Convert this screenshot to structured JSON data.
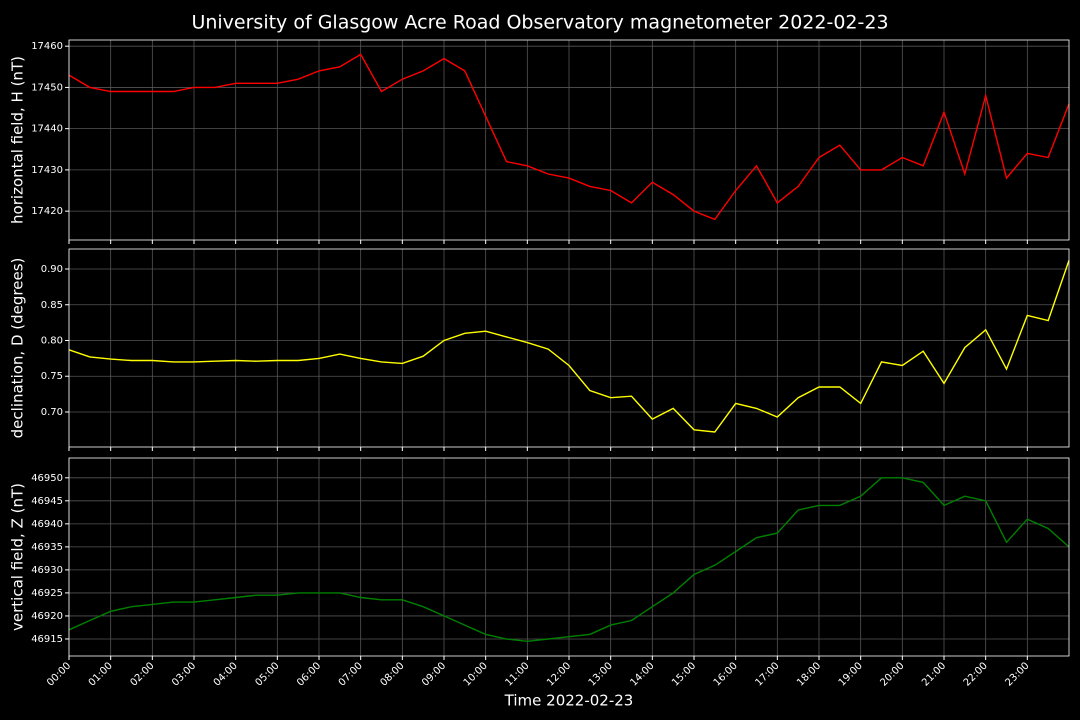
{
  "title": "University of Glasgow Acre Road Observatory magnetometer 2022-02-23",
  "x_label": "Time 2022-02-23",
  "chart_data": [
    {
      "type": "line",
      "y_label": "horizontal field, H (nT)",
      "grid": true,
      "x": [
        0,
        0.5,
        1,
        1.5,
        2,
        2.5,
        3,
        3.5,
        4,
        4.5,
        5,
        5.5,
        6,
        6.5,
        7,
        7.5,
        8,
        8.5,
        9,
        9.5,
        10,
        10.5,
        11,
        11.5,
        12,
        12.5,
        13,
        13.5,
        14,
        14.5,
        15,
        15.5,
        16,
        16.5,
        17,
        17.5,
        18,
        18.5,
        19,
        19.5,
        20,
        20.5,
        21,
        21.5,
        22,
        22.5,
        23,
        23.5,
        24
      ],
      "xlim": [
        0,
        24
      ],
      "ylim": [
        17413,
        17461.5
      ],
      "yticks": [
        17420,
        17430,
        17440,
        17450,
        17460
      ],
      "series": [
        {
          "name": "H",
          "color": "#ff0000",
          "values": [
            17453,
            17450,
            17449,
            17449,
            17449,
            17449,
            17450,
            17450,
            17451,
            17451,
            17451,
            17452,
            17454,
            17455,
            17458,
            17449,
            17452,
            17454,
            17457,
            17454,
            17443,
            17432,
            17431,
            17429,
            17428,
            17426,
            17425,
            17422,
            17427,
            17424,
            17420,
            17418,
            17425,
            17431,
            17422,
            17426,
            17433,
            17436,
            17430,
            17430,
            17433,
            17431,
            17444,
            17429,
            17448,
            17428,
            17434,
            17433,
            17446
          ]
        }
      ]
    },
    {
      "type": "line",
      "y_label": "declination, D (degrees)",
      "grid": true,
      "x": [
        0,
        0.5,
        1,
        1.5,
        2,
        2.5,
        3,
        3.5,
        4,
        4.5,
        5,
        5.5,
        6,
        6.5,
        7,
        7.5,
        8,
        8.5,
        9,
        9.5,
        10,
        10.5,
        11,
        11.5,
        12,
        12.5,
        13,
        13.5,
        14,
        14.5,
        15,
        15.5,
        16,
        16.5,
        17,
        17.5,
        18,
        18.5,
        19,
        19.5,
        20,
        20.5,
        21,
        21.5,
        22,
        22.5,
        23,
        23.5,
        24
      ],
      "xlim": [
        0,
        24
      ],
      "ylim": [
        0.651,
        0.928
      ],
      "yticks": [
        {
          "value": 0.7,
          "label": "0.70"
        },
        0.75,
        {
          "value": 0.8,
          "label": "0.80"
        },
        0.85,
        {
          "value": 0.9,
          "label": "0.90"
        }
      ],
      "series": [
        {
          "name": "D",
          "color": "#ffff00",
          "values": [
            0.787,
            0.777,
            0.774,
            0.772,
            0.772,
            0.77,
            0.77,
            0.771,
            0.772,
            0.771,
            0.772,
            0.772,
            0.775,
            0.781,
            0.775,
            0.77,
            0.768,
            0.778,
            0.8,
            0.81,
            0.813,
            0.805,
            0.797,
            0.788,
            0.765,
            0.73,
            0.72,
            0.722,
            0.69,
            0.705,
            0.675,
            0.672,
            0.712,
            0.705,
            0.693,
            0.72,
            0.735,
            0.735,
            0.712,
            0.77,
            0.765,
            0.785,
            0.74,
            0.79,
            0.815,
            0.76,
            0.835,
            0.828,
            0.912
          ]
        }
      ]
    },
    {
      "type": "line",
      "y_label": "vertical field, Z (nT)",
      "grid": true,
      "x": [
        0,
        0.5,
        1,
        1.5,
        2,
        2.5,
        3,
        3.5,
        4,
        4.5,
        5,
        5.5,
        6,
        6.5,
        7,
        7.5,
        8,
        8.5,
        9,
        9.5,
        10,
        10.5,
        11,
        11.5,
        12,
        12.5,
        13,
        13.5,
        14,
        14.5,
        15,
        15.5,
        16,
        16.5,
        17,
        17.5,
        18,
        18.5,
        19,
        19.5,
        20,
        20.5,
        21,
        21.5,
        22,
        22.5,
        23,
        23.5,
        24
      ],
      "xlim": [
        0,
        24
      ],
      "ylim": [
        46911.3,
        46954.3
      ],
      "yticks": [
        46915,
        46920,
        46925,
        46930,
        46935,
        46940,
        46945,
        46950
      ],
      "xticks": [
        {
          "value": 0,
          "label": "00:00"
        },
        {
          "value": 1,
          "label": "01:00"
        },
        {
          "value": 2,
          "label": "02:00"
        },
        {
          "value": 3,
          "label": "03:00"
        },
        {
          "value": 4,
          "label": "04:00"
        },
        {
          "value": 5,
          "label": "05:00"
        },
        {
          "value": 6,
          "label": "06:00"
        },
        {
          "value": 7,
          "label": "07:00"
        },
        {
          "value": 8,
          "label": "08:00"
        },
        {
          "value": 9,
          "label": "09:00"
        },
        {
          "value": 10,
          "label": "10:00"
        },
        {
          "value": 11,
          "label": "11:00"
        },
        {
          "value": 12,
          "label": "12:00"
        },
        {
          "value": 13,
          "label": "13:00"
        },
        {
          "value": 14,
          "label": "14:00"
        },
        {
          "value": 15,
          "label": "15:00"
        },
        {
          "value": 16,
          "label": "16:00"
        },
        {
          "value": 17,
          "label": "17:00"
        },
        {
          "value": 18,
          "label": "18:00"
        },
        {
          "value": 19,
          "label": "19:00"
        },
        {
          "value": 20,
          "label": "20:00"
        },
        {
          "value": 21,
          "label": "21:00"
        },
        {
          "value": 22,
          "label": "22:00"
        },
        {
          "value": 23,
          "label": "23:00"
        }
      ],
      "series": [
        {
          "name": "Z",
          "color": "#008000",
          "values": [
            46917,
            46919,
            46921,
            46922,
            46922.5,
            46923,
            46923,
            46923.5,
            46924,
            46924.5,
            46924.5,
            46925,
            46925,
            46925,
            46924,
            46923.5,
            46923.5,
            46922,
            46920,
            46918,
            46916,
            46915,
            46914.5,
            46915,
            46915.5,
            46916,
            46918,
            46919,
            46922,
            46925,
            46929,
            46931,
            46934,
            46937,
            46938,
            46943,
            46944,
            46944,
            46946,
            46950,
            46950,
            46949,
            46944,
            46946,
            46945,
            46936,
            46941,
            46939,
            46935
          ]
        }
      ]
    }
  ]
}
